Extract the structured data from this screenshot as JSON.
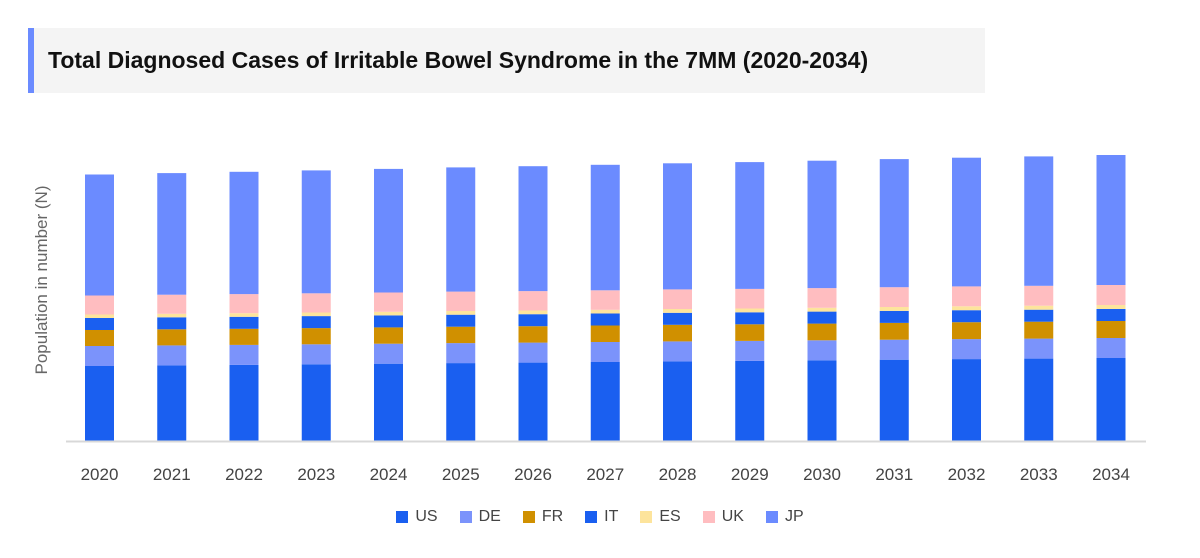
{
  "chart_data": {
    "type": "bar",
    "stacked": true,
    "title": "Total Diagnosed Cases of Irritable Bowel Syndrome in the 7MM (2020-2034)",
    "xlabel": "",
    "ylabel": "Population in number (N)",
    "ylim": [
      0,
      300
    ],
    "y_ticks_shown": false,
    "grid": false,
    "legend_position": "bottom",
    "categories": [
      "2020",
      "2021",
      "2022",
      "2023",
      "2024",
      "2025",
      "2026",
      "2027",
      "2028",
      "2029",
      "2030",
      "2031",
      "2032",
      "2033",
      "2034"
    ],
    "series": [
      {
        "name": "US",
        "color": "#1a5ff0",
        "values": [
          75,
          75.6,
          76.1,
          76.7,
          77.3,
          77.9,
          78.4,
          79,
          79.6,
          80.1,
          80.7,
          81.3,
          81.9,
          82.4,
          83
        ]
      },
      {
        "name": "DE",
        "color": "#7b93fb",
        "values": [
          20,
          20,
          20,
          20,
          20,
          20,
          20,
          20,
          20,
          20,
          20,
          20,
          20,
          20,
          20
        ]
      },
      {
        "name": "FR",
        "color": "#d09000",
        "values": [
          16,
          16.1,
          16.1,
          16.2,
          16.3,
          16.4,
          16.4,
          16.5,
          16.6,
          16.6,
          16.7,
          16.8,
          16.9,
          16.9,
          17
        ]
      },
      {
        "name": "IT",
        "color": "#1a5ff0",
        "values": [
          12,
          12,
          12,
          12,
          12,
          12,
          12,
          12,
          12,
          12,
          12,
          12,
          12,
          12,
          12
        ]
      },
      {
        "name": "ES",
        "color": "#fde49c",
        "values": [
          3.5,
          3.5,
          3.6,
          3.6,
          3.6,
          3.7,
          3.7,
          3.7,
          3.8,
          3.8,
          3.8,
          3.9,
          3.9,
          4,
          4
        ]
      },
      {
        "name": "UK",
        "color": "#ffbdc0",
        "values": [
          19,
          19.1,
          19.1,
          19.2,
          19.3,
          19.4,
          19.4,
          19.5,
          19.6,
          19.6,
          19.7,
          19.8,
          19.9,
          19.9,
          20
        ]
      },
      {
        "name": "JP",
        "color": "#6b8bff",
        "values": [
          121,
          121.6,
          122.3,
          122.9,
          123.6,
          124.2,
          124.9,
          125.5,
          126.1,
          126.8,
          127.4,
          128.1,
          128.7,
          129.4,
          130
        ]
      }
    ]
  }
}
